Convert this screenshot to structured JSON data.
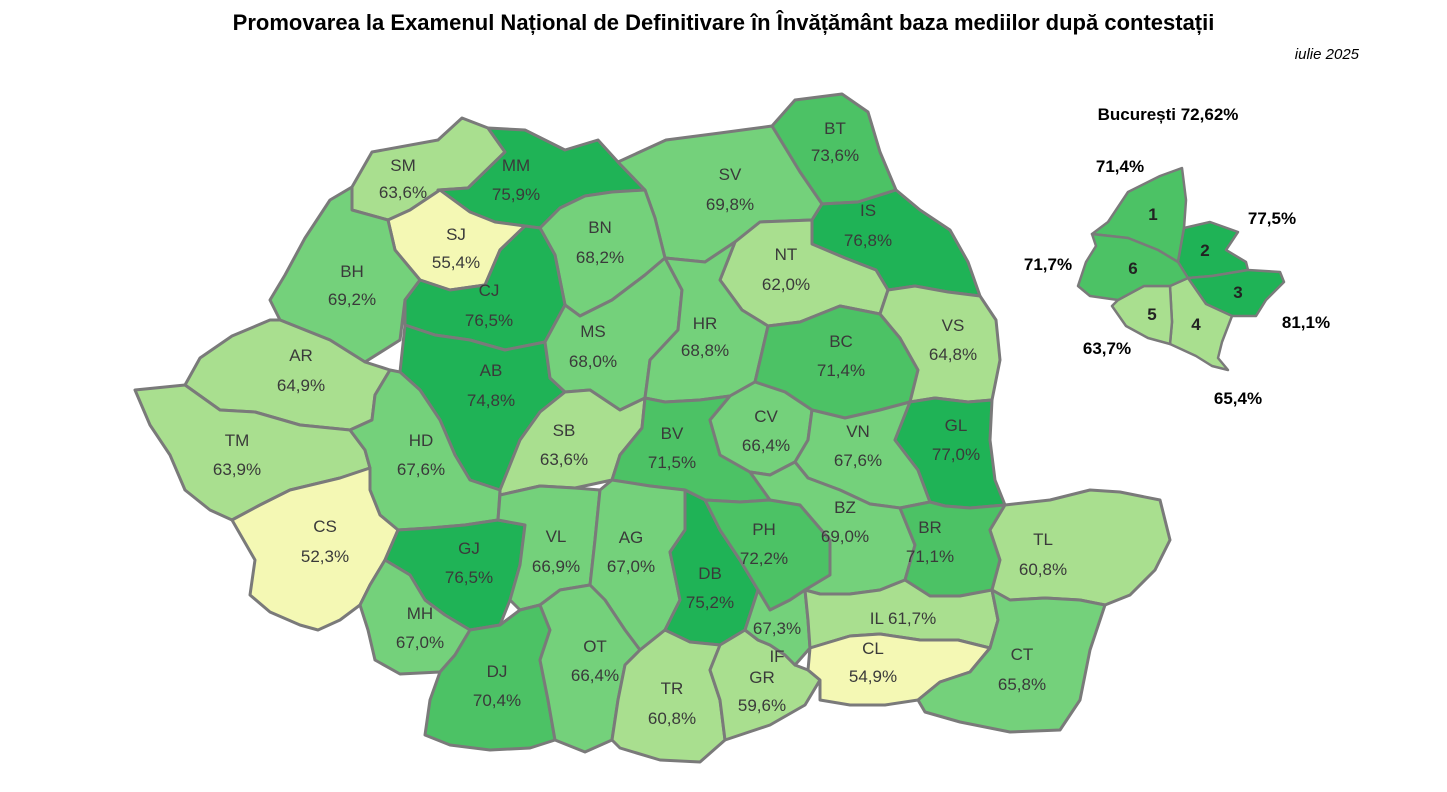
{
  "title": "Promovarea la Examenul Național de Definitivare în Învățământ baza mediilor după contestații",
  "subtitle": "iulie 2025",
  "colors": {
    "very_low": "#f4f8b4",
    "low": "#a9df8f",
    "mid": "#74d17b",
    "high": "#4cc265",
    "very_high": "#1fb356",
    "border": "#7a7a7a"
  },
  "counties": [
    {
      "code": "SM",
      "value": "63,6%",
      "level": "low"
    },
    {
      "code": "MM",
      "value": "75,9%",
      "level": "very_high"
    },
    {
      "code": "BT",
      "value": "73,6%",
      "level": "high"
    },
    {
      "code": "SV",
      "value": "69,8%",
      "level": "mid"
    },
    {
      "code": "SJ",
      "value": "55,4%",
      "level": "very_low"
    },
    {
      "code": "BN",
      "value": "68,2%",
      "level": "mid"
    },
    {
      "code": "IS",
      "value": "76,8%",
      "level": "very_high"
    },
    {
      "code": "BH",
      "value": "69,2%",
      "level": "mid"
    },
    {
      "code": "CJ",
      "value": "76,5%",
      "level": "very_high"
    },
    {
      "code": "NT",
      "value": "62,0%",
      "level": "low"
    },
    {
      "code": "AR",
      "value": "64,9%",
      "level": "low"
    },
    {
      "code": "AB",
      "value": "74,8%",
      "level": "very_high"
    },
    {
      "code": "MS",
      "value": "68,0%",
      "level": "mid"
    },
    {
      "code": "HR",
      "value": "68,8%",
      "level": "mid"
    },
    {
      "code": "BC",
      "value": "71,4%",
      "level": "high"
    },
    {
      "code": "VS",
      "value": "64,8%",
      "level": "low"
    },
    {
      "code": "TM",
      "value": "63,9%",
      "level": "low"
    },
    {
      "code": "HD",
      "value": "67,6%",
      "level": "mid"
    },
    {
      "code": "SB",
      "value": "63,6%",
      "level": "low"
    },
    {
      "code": "BV",
      "value": "71,5%",
      "level": "high"
    },
    {
      "code": "CV",
      "value": "66,4%",
      "level": "mid"
    },
    {
      "code": "VN",
      "value": "67,6%",
      "level": "mid"
    },
    {
      "code": "GL",
      "value": "77,0%",
      "level": "very_high"
    },
    {
      "code": "CS",
      "value": "52,3%",
      "level": "very_low"
    },
    {
      "code": "GJ",
      "value": "76,5%",
      "level": "very_high"
    },
    {
      "code": "VL",
      "value": "66,9%",
      "level": "mid"
    },
    {
      "code": "AG",
      "value": "67,0%",
      "level": "mid"
    },
    {
      "code": "DB",
      "value": "75,2%",
      "level": "very_high"
    },
    {
      "code": "PH",
      "value": "72,2%",
      "level": "high"
    },
    {
      "code": "BZ",
      "value": "69,0%",
      "level": "mid"
    },
    {
      "code": "BR",
      "value": "71,1%",
      "level": "high"
    },
    {
      "code": "TL",
      "value": "60,8%",
      "level": "low"
    },
    {
      "code": "MH",
      "value": "67,0%",
      "level": "mid"
    },
    {
      "code": "DJ",
      "value": "70,4%",
      "level": "high"
    },
    {
      "code": "OT",
      "value": "66,4%",
      "level": "mid"
    },
    {
      "code": "TR",
      "value": "60,8%",
      "level": "low"
    },
    {
      "code": "GR",
      "value": "59,6%",
      "level": "low"
    },
    {
      "code": "IF",
      "value": "67,3%",
      "level": "mid"
    },
    {
      "code": "IL",
      "value": "61,7%",
      "level": "low"
    },
    {
      "code": "CL",
      "value": "54,9%",
      "level": "very_low"
    },
    {
      "code": "CT",
      "value": "65,8%",
      "level": "mid"
    }
  ],
  "bucharest": {
    "label": "București 72,62%",
    "sectors": [
      {
        "number": "1",
        "value": "71,4%",
        "level": "high"
      },
      {
        "number": "2",
        "value": "77,5%",
        "level": "very_high"
      },
      {
        "number": "3",
        "value": "81,1%",
        "level": "very_high"
      },
      {
        "number": "4",
        "value": "65,4%",
        "level": "low"
      },
      {
        "number": "5",
        "value": "63,7%",
        "level": "low"
      },
      {
        "number": "6",
        "value": "71,7%",
        "level": "high"
      }
    ]
  }
}
